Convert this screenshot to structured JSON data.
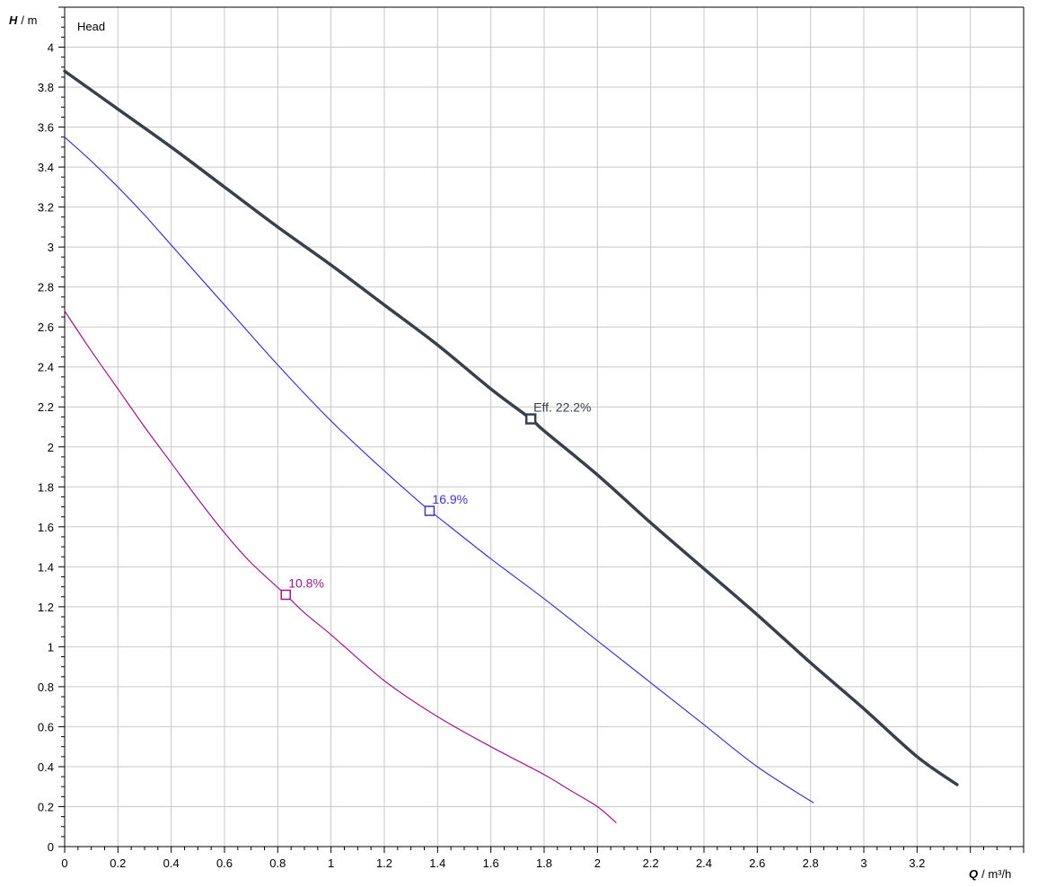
{
  "chart_data": {
    "type": "line",
    "title": "Head",
    "xlabel": {
      "symbol": "Q",
      "unit": "/ m³/h"
    },
    "ylabel": {
      "symbol": "H",
      "unit": "/ m"
    },
    "xlim": [
      0,
      3.6
    ],
    "ylim": [
      0,
      4.2
    ],
    "grid": true,
    "x_ticks": [
      "0",
      "0.2",
      "0.4",
      "0.6",
      "0.8",
      "1",
      "1.2",
      "1.4",
      "1.6",
      "1.8",
      "2",
      "2.2",
      "2.4",
      "2.6",
      "2.8",
      "3",
      "3.2"
    ],
    "y_ticks": [
      "0",
      "0.2",
      "0.4",
      "0.6",
      "0.8",
      "1",
      "1.2",
      "1.4",
      "1.6",
      "1.8",
      "2",
      "2.2",
      "2.4",
      "2.6",
      "2.8",
      "3",
      "3.2",
      "3.4",
      "3.6",
      "3.8",
      "4"
    ],
    "series": [
      {
        "label": "Eff.  22.2%",
        "color": "#3a4049",
        "weight": "bold",
        "marker": {
          "x": 1.75,
          "y": 2.14
        },
        "x": [
          0,
          0.2,
          0.4,
          0.6,
          0.8,
          1.0,
          1.2,
          1.4,
          1.6,
          1.75,
          1.8,
          2.0,
          2.2,
          2.4,
          2.6,
          2.8,
          3.0,
          3.2,
          3.35
        ],
        "y": [
          3.88,
          3.69,
          3.5,
          3.3,
          3.1,
          2.91,
          2.71,
          2.51,
          2.29,
          2.14,
          2.08,
          1.86,
          1.62,
          1.39,
          1.16,
          0.92,
          0.69,
          0.45,
          0.31
        ]
      },
      {
        "label": "16.9%",
        "color": "#3d34c9",
        "weight": "normal",
        "marker": {
          "x": 1.37,
          "y": 1.68
        },
        "x": [
          0,
          0.1,
          0.2,
          0.3,
          0.4,
          0.5,
          0.6,
          0.8,
          1.0,
          1.2,
          1.37,
          1.4,
          1.6,
          1.8,
          2.0,
          2.2,
          2.4,
          2.6,
          2.81
        ],
        "y": [
          3.55,
          3.43,
          3.3,
          3.16,
          3.01,
          2.86,
          2.71,
          2.41,
          2.13,
          1.88,
          1.68,
          1.65,
          1.44,
          1.24,
          1.03,
          0.82,
          0.61,
          0.4,
          0.22
        ]
      },
      {
        "label": "10.8%",
        "color": "#a0158f",
        "weight": "normal",
        "marker": {
          "x": 0.83,
          "y": 1.26
        },
        "x": [
          0,
          0.1,
          0.2,
          0.3,
          0.4,
          0.5,
          0.6,
          0.7,
          0.83,
          0.9,
          1.0,
          1.2,
          1.4,
          1.6,
          1.8,
          1.9,
          2.0,
          2.07
        ],
        "y": [
          2.68,
          2.48,
          2.29,
          2.1,
          1.92,
          1.74,
          1.57,
          1.42,
          1.26,
          1.17,
          1.06,
          0.83,
          0.65,
          0.5,
          0.36,
          0.28,
          0.2,
          0.12
        ]
      }
    ]
  }
}
